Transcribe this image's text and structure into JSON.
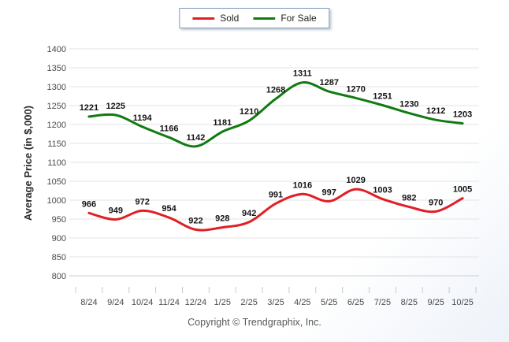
{
  "legend": {
    "items": [
      {
        "label": "Sold",
        "color": "#e01f25"
      },
      {
        "label": "For Sale",
        "color": "#117b11"
      }
    ]
  },
  "footer": {
    "copyright": "Copyright © Trendgraphix, Inc."
  },
  "chart_data": {
    "type": "line",
    "title": "",
    "categories": [
      "8/24",
      "9/24",
      "10/24",
      "11/24",
      "12/24",
      "1/25",
      "2/25",
      "3/25",
      "4/25",
      "5/25",
      "6/25",
      "7/25",
      "8/25",
      "9/25",
      "10/25"
    ],
    "series": [
      {
        "name": "Sold",
        "color": "#e01f25",
        "values": [
          966,
          949,
          972,
          954,
          922,
          928,
          942,
          991,
          1016,
          997,
          1029,
          1003,
          982,
          970,
          1005
        ]
      },
      {
        "name": "For Sale",
        "color": "#117b11",
        "values": [
          1221,
          1225,
          1194,
          1166,
          1142,
          1181,
          1210,
          1268,
          1311,
          1287,
          1270,
          1251,
          1230,
          1212,
          1203
        ]
      }
    ],
    "xlabel": "",
    "ylabel": "Average Price (in $,000)",
    "ylim": [
      800,
      1400
    ],
    "ytick_step": 50,
    "grid": true,
    "smooth": true,
    "data_labels": true,
    "legend_position": "top-center"
  }
}
